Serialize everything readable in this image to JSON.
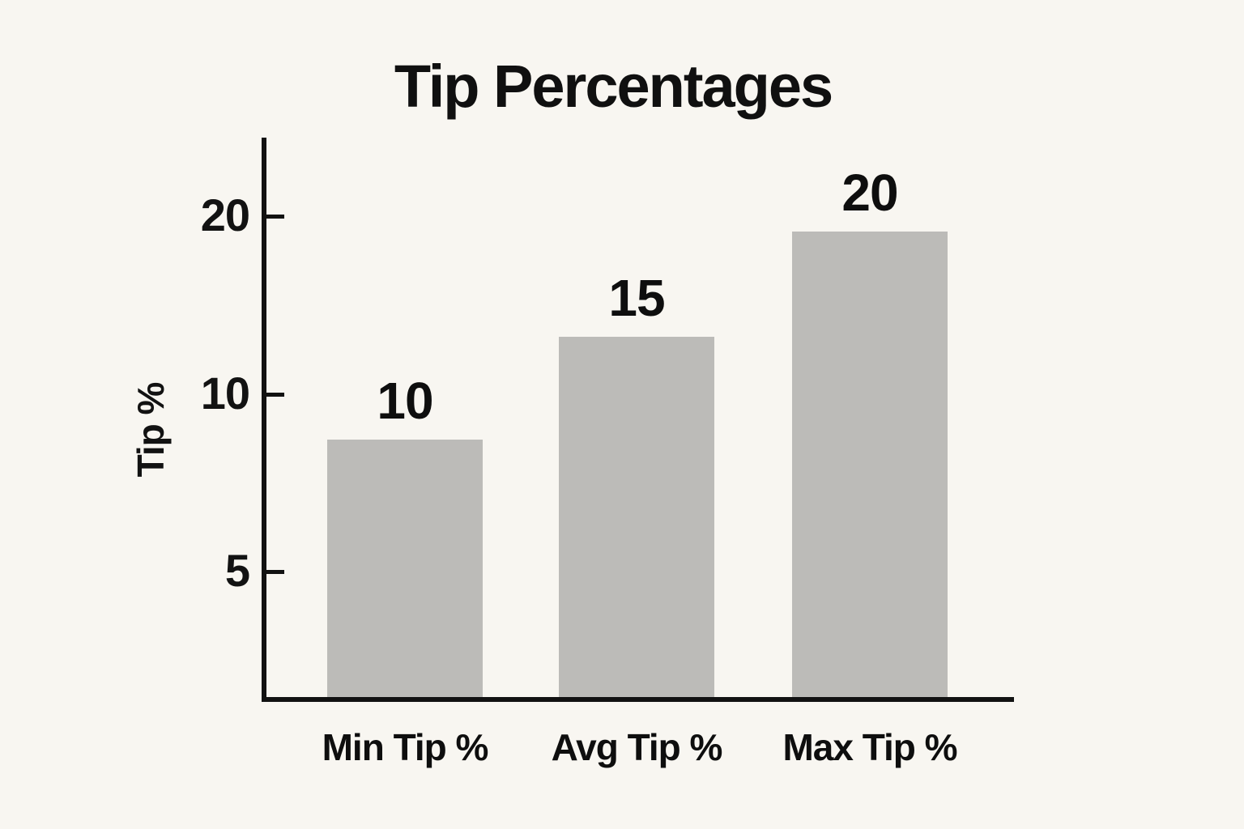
{
  "chart_data": {
    "type": "bar",
    "title": "Tip Percentages",
    "xlabel": "",
    "ylabel": "Tip %",
    "categories": [
      "Min Tip %",
      "Avg Tip %",
      "Max Tip %"
    ],
    "values": [
      10,
      15,
      20
    ],
    "data_labels": [
      "10",
      "15",
      "20"
    ],
    "yticks": [
      5,
      10,
      20
    ],
    "ylim": [
      0,
      22
    ],
    "grid": false,
    "legend": "none",
    "bar_color": "#bcbbb8",
    "axis_color": "#121212",
    "text_color": "#0e0e0e",
    "background_color": "#f8f6f1"
  }
}
